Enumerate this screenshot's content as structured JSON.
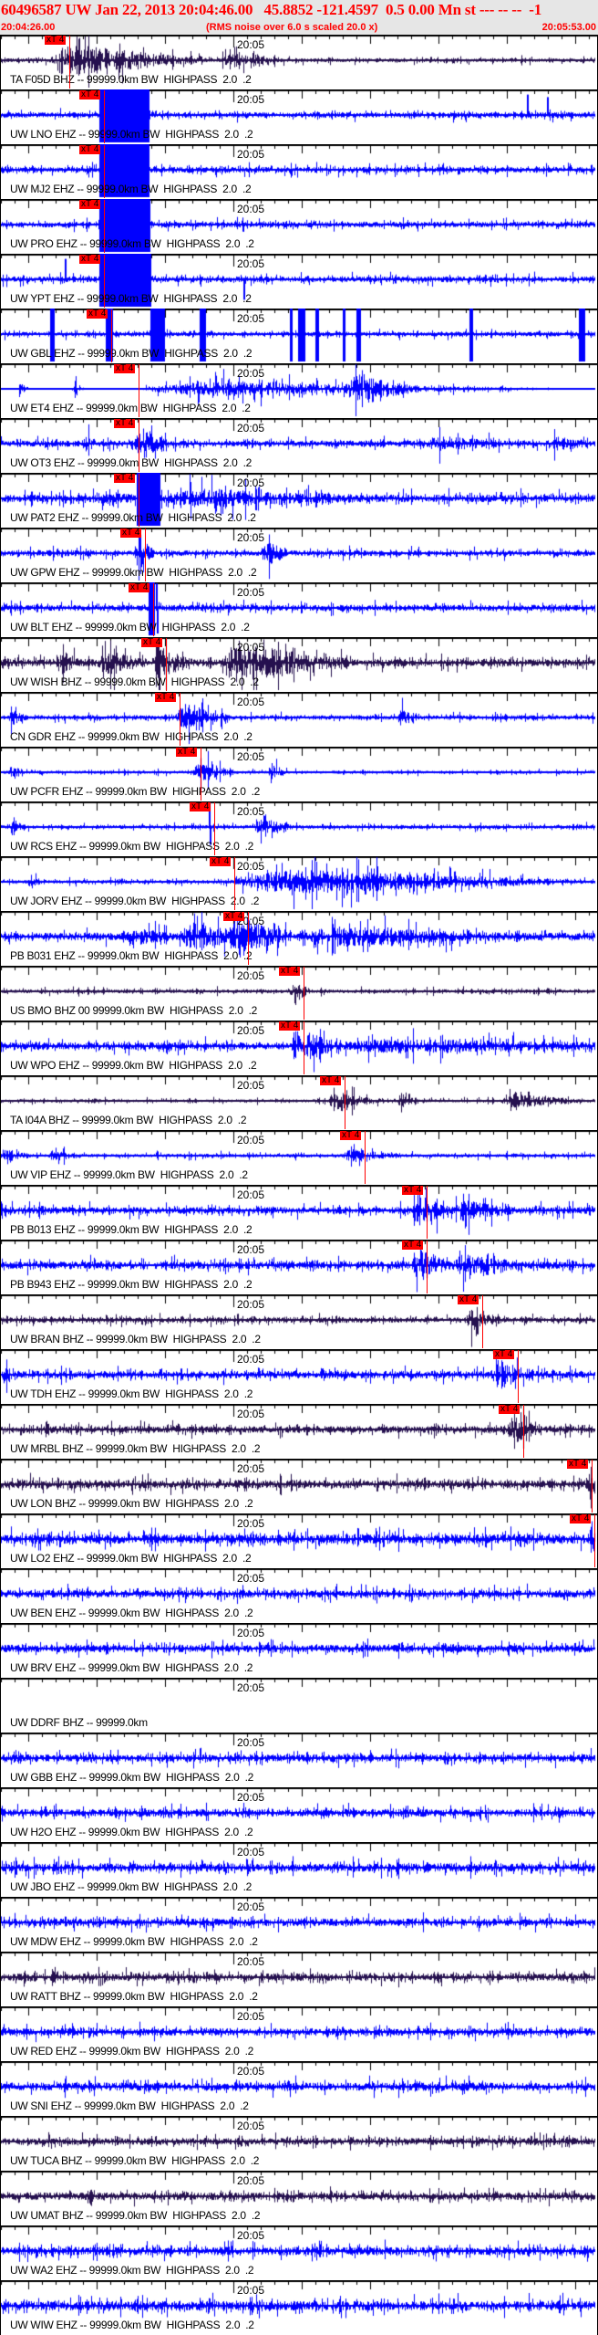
{
  "header": {
    "title": "60496587 UW Jan 22, 2013 20:04:46.00   45.8852 -121.4597  0.5 0.00 Mn st --- -- --  -1",
    "start_time": "20:04:26.00",
    "rms_note": "(RMS noise over 6.0 s scaled 20.0 x)",
    "end_time": "20:05:53.00"
  },
  "axis": {
    "tick_label": "20:05",
    "tick_label_seconds": 34,
    "duration_seconds": 87,
    "major_tick_seconds": 10,
    "minor_tick_seconds": 2
  },
  "pick_label": "xT 4",
  "colors": {
    "ehz": "#0000ff",
    "bhz": "#25104f",
    "pick": "#ff0000",
    "header_bg": "#e6e6e6",
    "header_text": "#ff0000"
  },
  "traces": [
    {
      "label": "TA F05D BHZ -- 99999.0km BW  HIGHPASS  2.0  .2",
      "ch": "bhz",
      "pick": 10.0,
      "noise": 0.1,
      "bursts": [
        [
          7,
          24,
          0.9
        ],
        [
          32,
          10,
          0.3
        ],
        [
          110,
          6,
          0.25
        ],
        [
          124,
          6,
          0.25
        ],
        [
          140,
          8,
          0.2
        ]
      ]
    },
    {
      "label": "UW LNO EHZ -- 99999.0km BW  HIGHPASS  2.0  .2",
      "ch": "ehz",
      "pick": 15.1,
      "noise": 0.15,
      "clip": [
        [
          14.3,
          21.7
        ]
      ],
      "spikes": [
        [
          77,
          0.8
        ],
        [
          80,
          0.7
        ],
        [
          88,
          0.6
        ],
        [
          101,
          0.6
        ],
        [
          108,
          0.7
        ],
        [
          117,
          0.6
        ],
        [
          128,
          0.7
        ]
      ]
    },
    {
      "label": "UW MJ2 EHZ -- 99999.0km BW  HIGHPASS  2.0  .2",
      "ch": "ehz",
      "pick": 15.1,
      "noise": 0.15,
      "clip": [
        [
          14.3,
          21.7
        ]
      ]
    },
    {
      "label": "UW PRO EHZ -- 99999.0km BW  HIGHPASS  2.0  .2",
      "ch": "ehz",
      "pick": 15.1,
      "noise": 0.15,
      "clip": [
        [
          14.3,
          21.8
        ]
      ]
    },
    {
      "label": "UW YPT EHZ -- 99999.0km BW  HIGHPASS  2.0  .2",
      "ch": "ehz",
      "pick": 15.1,
      "noise": 0.15,
      "clip": [
        [
          14.3,
          21.9
        ]
      ],
      "spikes": [
        [
          9.4,
          0.8
        ],
        [
          35.6,
          -0.8
        ]
      ]
    },
    {
      "label": "UW GBL EHZ -- 99999.0km BW  HIGHPASS  2.0  .2",
      "ch": "ehz",
      "pick": 16.1,
      "noise": 0.12,
      "clip": [
        [
          7.1,
          7.8
        ],
        [
          15.3,
          16.4
        ],
        [
          21.8,
          24
        ],
        [
          29,
          29.9
        ],
        [
          42.2,
          42.6
        ],
        [
          43.5,
          44.5
        ],
        [
          46,
          46.5
        ],
        [
          50,
          50.4
        ],
        [
          52,
          52.6
        ],
        [
          68.5,
          69
        ],
        [
          84.5,
          85.5
        ]
      ]
    },
    {
      "label": "UW ET4 EHZ -- 99999.0km BW  HIGHPASS  2.0  .2",
      "ch": "ehz",
      "pick": 20.1,
      "noise": 0.0,
      "bursts": [
        [
          2.5,
          2,
          0.4
        ],
        [
          10.3,
          2,
          0.4
        ],
        [
          19.4,
          68,
          0.5
        ],
        [
          50,
          12,
          0.6
        ]
      ]
    },
    {
      "label": "UW OT3 EHZ -- 99999.0km BW  HIGHPASS  2.0  .2",
      "ch": "ehz",
      "pick": 20.1,
      "noise": 0.16,
      "bursts": [
        [
          12,
          2,
          0.4
        ],
        [
          19.6,
          5,
          1.0
        ],
        [
          62,
          12,
          0.35
        ],
        [
          80,
          7,
          0.3
        ]
      ]
    },
    {
      "label": "UW PAT2 EHZ -- 99999.0km BW  HIGHPASS  2.0  .2",
      "ch": "ehz",
      "pick": 20.1,
      "noise": 0.2,
      "clip": [
        [
          19.8,
          23.3
        ]
      ],
      "bursts": [
        [
          14,
          6,
          0.3
        ],
        [
          23.5,
          30,
          0.4
        ]
      ]
    },
    {
      "label": "UW GPW EHZ -- 99999.0km BW  HIGHPASS  2.0  .2",
      "ch": "ehz",
      "pick": 21.1,
      "noise": 0.15,
      "bursts": [
        [
          19.6,
          3,
          1.0
        ],
        [
          38,
          4,
          0.9
        ]
      ]
    },
    {
      "label": "UW BLT EHZ -- 99999.0km BW  HIGHPASS  2.0  .2",
      "ch": "ehz",
      "pick": 22.3,
      "noise": 0.16,
      "clip": [
        [
          21.5,
          22.5
        ]
      ],
      "spikes": [
        [
          22.7,
          1
        ],
        [
          22.9,
          -1
        ]
      ]
    },
    {
      "label": "UW WISH BHZ -- 99999.0km BW  HIGHPASS  2.0  .2",
      "ch": "bhz",
      "pick": 24.1,
      "noise": 0.2,
      "bursts": [
        [
          8,
          4,
          0.6
        ],
        [
          14,
          8,
          0.6
        ],
        [
          22,
          6,
          0.9
        ],
        [
          32,
          20,
          1.0
        ]
      ]
    },
    {
      "label": "CN GDR EHZ -- 99999.0km BW  HIGHPASS  2.0  .2",
      "ch": "ehz",
      "pick": 26.1,
      "noise": 0.12,
      "bursts": [
        [
          1,
          3,
          0.4
        ],
        [
          25.5,
          9,
          0.8
        ],
        [
          58,
          3,
          0.4
        ]
      ]
    },
    {
      "label": "UW PCFR EHZ -- 99999.0km BW  HIGHPASS  2.0  .2",
      "ch": "ehz",
      "pick": 29.2,
      "noise": 0.08,
      "bursts": [
        [
          1,
          3,
          0.35
        ],
        [
          28,
          6,
          0.6
        ],
        [
          39,
          3,
          0.4
        ]
      ]
    },
    {
      "label": "UW RCS EHZ -- 99999.0km BW  HIGHPASS  2.0  .2",
      "ch": "ehz",
      "pick": 31.2,
      "noise": 0.1,
      "bursts": [
        [
          1,
          3,
          0.3
        ],
        [
          37,
          6,
          0.5
        ]
      ],
      "spikes": [
        [
          30.5,
          1
        ],
        [
          30.6,
          -0.7
        ]
      ]
    },
    {
      "label": "UW JORV EHZ -- 99999.0km BW  HIGHPASS  2.0  .2",
      "ch": "ehz",
      "pick": 34.1,
      "noise": 0.1,
      "bursts": [
        [
          4,
          2,
          0.4
        ],
        [
          33.5,
          53,
          0.7
        ]
      ]
    },
    {
      "label": "PB B031 EHZ -- 99999.0km BW  HIGHPASS  2.0  .2",
      "ch": "ehz",
      "pick": 36.1,
      "noise": 0.2,
      "bursts": [
        [
          18,
          8,
          0.35
        ],
        [
          26,
          12,
          0.7
        ],
        [
          33,
          10,
          1.0
        ],
        [
          44,
          30,
          0.45
        ]
      ]
    },
    {
      "label": "US BMO BHZ 00 99999.0km BW  HIGHPASS  2.0  .2",
      "ch": "bhz",
      "pick": 44.3,
      "noise": 0.1,
      "bursts": [
        [
          42.5,
          3,
          0.7
        ]
      ]
    },
    {
      "label": "UW WPO EHZ -- 99999.0km BW  HIGHPASS  2.0  .2",
      "ch": "ehz",
      "pick": 44.3,
      "noise": 0.2,
      "bursts": [
        [
          42.5,
          2,
          1
        ],
        [
          44,
          6,
          0.7
        ],
        [
          50,
          40,
          0.25
        ]
      ]
    },
    {
      "label": "TA I04A BHZ -- 99999.0km BW  HIGHPASS  2.0  .2",
      "ch": "bhz",
      "pick": 50.3,
      "noise": 0.08,
      "bursts": [
        [
          48,
          8,
          0.5
        ],
        [
          58,
          3,
          0.4
        ],
        [
          73,
          13,
          0.4
        ]
      ]
    },
    {
      "label": "UW VIP EHZ -- 99999.0km BW  HIGHPASS  2.0  .2",
      "ch": "ehz",
      "pick": 53.3,
      "noise": 0.1,
      "bursts": [
        [
          0,
          4,
          0.3
        ],
        [
          7,
          4,
          0.3
        ],
        [
          50,
          8,
          0.35
        ]
      ]
    },
    {
      "label": "PB B013 EHZ -- 99999.0km BW  HIGHPASS  2.0  .2",
      "ch": "ehz",
      "pick": 62.3,
      "noise": 0.18,
      "bursts": [
        [
          60,
          6,
          0.9
        ],
        [
          66,
          10,
          0.5
        ]
      ]
    },
    {
      "label": "PB B943 EHZ -- 99999.0km BW  HIGHPASS  2.0  .2",
      "ch": "ehz",
      "pick": 62.3,
      "noise": 0.2,
      "bursts": [
        [
          60,
          6,
          1
        ],
        [
          66,
          10,
          0.55
        ]
      ]
    },
    {
      "label": "UW BRAN BHZ -- 99999.0km BW  HIGHPASS  2.0  .2",
      "ch": "bhz",
      "pick": 70.4,
      "noise": 0.14,
      "bursts": [
        [
          68,
          5,
          0.6
        ]
      ]
    },
    {
      "label": "UW TDH EHZ -- 99999.0km BW  HIGHPASS  2.0  .2",
      "ch": "ehz",
      "pick": 75.6,
      "noise": 0.2,
      "bursts": [
        [
          0,
          3,
          0.4
        ],
        [
          72,
          5,
          0.9
        ]
      ]
    },
    {
      "label": "UW MRBL BHZ -- 99999.0km BW  HIGHPASS  2.0  .2",
      "ch": "bhz",
      "pick": 76.4,
      "noise": 0.18,
      "bursts": [
        [
          74,
          5,
          0.8
        ]
      ]
    },
    {
      "label": "UW LON BHZ -- 99999.0km BW  HIGHPASS  2.0  .2",
      "ch": "bhz",
      "pick": 86.4,
      "noise": 0.22,
      "bursts": [
        [
          86,
          1,
          1
        ]
      ]
    },
    {
      "label": "UW LO2 EHZ -- 99999.0km BW  HIGHPASS  2.0  .2",
      "ch": "ehz",
      "pick": 86.8,
      "noise": 0.25,
      "bursts": [
        [
          86.2,
          1,
          1
        ]
      ]
    },
    {
      "label": "UW BEN EHZ -- 99999.0km BW  HIGHPASS  2.0  .2",
      "ch": "ehz",
      "noise": 0.2
    },
    {
      "label": "UW BRV EHZ -- 99999.0km BW  HIGHPASS  2.0  .2",
      "ch": "ehz",
      "noise": 0.2
    },
    {
      "label": "UW DDRF BHZ -- 99999.0km",
      "ch": "bhz",
      "empty": true
    },
    {
      "label": "UW GBB EHZ -- 99999.0km BW  HIGHPASS  2.0  .2",
      "ch": "ehz",
      "noise": 0.2
    },
    {
      "label": "UW H2O EHZ -- 99999.0km BW  HIGHPASS  2.0  .2",
      "ch": "ehz",
      "noise": 0.2
    },
    {
      "label": "UW JBO EHZ -- 99999.0km BW  HIGHPASS  2.0  .2",
      "ch": "ehz",
      "noise": 0.22
    },
    {
      "label": "UW MDW EHZ -- 99999.0km BW  HIGHPASS  2.0  .2",
      "ch": "ehz",
      "noise": 0.2
    },
    {
      "label": "UW RATT BHZ -- 99999.0km BW  HIGHPASS  2.0  .2",
      "ch": "bhz",
      "noise": 0.2
    },
    {
      "label": "UW RED EHZ -- 99999.0km BW  HIGHPASS  2.0  .2",
      "ch": "ehz",
      "noise": 0.2
    },
    {
      "label": "UW SNI EHZ -- 99999.0km BW  HIGHPASS  2.0  .2",
      "ch": "ehz",
      "noise": 0.22
    },
    {
      "label": "UW TUCA BHZ -- 99999.0km BW  HIGHPASS  2.0  .2",
      "ch": "bhz",
      "noise": 0.18
    },
    {
      "label": "UW UMAT BHZ -- 99999.0km BW  HIGHPASS  2.0  .2",
      "ch": "bhz",
      "noise": 0.2
    },
    {
      "label": "UW WA2 EHZ -- 99999.0km BW  HIGHPASS  2.0  .2",
      "ch": "ehz",
      "noise": 0.22
    },
    {
      "label": "UW WIW EHZ -- 99999.0km BW  HIGHPASS  2.0  .2",
      "ch": "ehz",
      "noise": 0.25
    }
  ]
}
